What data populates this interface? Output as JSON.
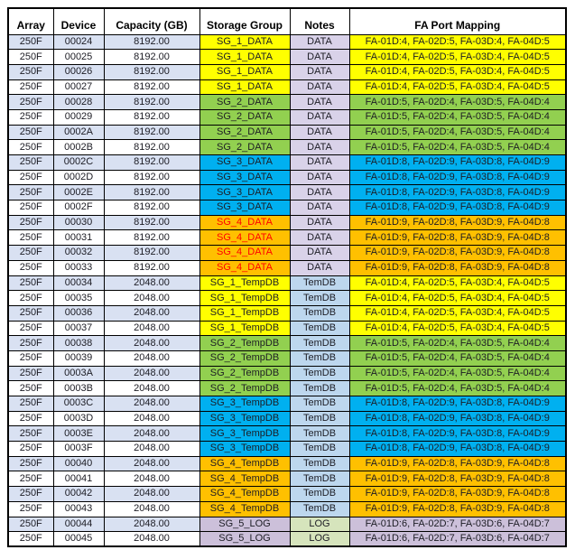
{
  "table": {
    "columns": [
      "Array",
      "Device",
      "Capacity (GB)",
      "Storage Group",
      "Notes",
      "FA Port Mapping"
    ],
    "colors": {
      "stripe": "#D9E1F2",
      "row_alt": "#FFFFFF",
      "border": "#000000",
      "header_bg": "#FFFFFF",
      "default_text": "#1C1C24",
      "sg4_data_text": "#FF0000"
    },
    "groups": {
      "SG_1_DATA": {
        "color": "#FFFF00",
        "text_color": "#1C1C24",
        "note": "DATA",
        "fa": "FA-01D:4, FA-02D:5, FA-03D:4, FA-04D:5"
      },
      "SG_2_DATA": {
        "color": "#92D050",
        "text_color": "#1C1C24",
        "note": "DATA",
        "fa": "FA-01D:5, FA-02D:4, FA-03D:5, FA-04D:4"
      },
      "SG_3_DATA": {
        "color": "#00B0F0",
        "text_color": "#1C1C24",
        "note": "DATA",
        "fa": "FA-01D:8, FA-02D:9, FA-03D:8, FA-04D:9"
      },
      "SG_4_DATA": {
        "color": "#FFC000",
        "text_color": "#FF0000",
        "note": "DATA",
        "fa": "FA-01D:9, FA-02D:8, FA-03D:9, FA-04D:8"
      },
      "SG_1_TempDB": {
        "color": "#FFFF00",
        "text_color": "#1C1C24",
        "note": "TemDB",
        "fa": "FA-01D:4, FA-02D:5, FA-03D:4, FA-04D:5"
      },
      "SG_2_TempDB": {
        "color": "#92D050",
        "text_color": "#1C1C24",
        "note": "TemDB",
        "fa": "FA-01D:5, FA-02D:4, FA-03D:5, FA-04D:4"
      },
      "SG_3_TempDB": {
        "color": "#00B0F0",
        "text_color": "#1C1C24",
        "note": "TemDB",
        "fa": "FA-01D:8, FA-02D:9, FA-03D:8, FA-04D:9"
      },
      "SG_4_TempDB": {
        "color": "#FFC000",
        "text_color": "#1C1C24",
        "note": "TemDB",
        "fa": "FA-01D:9, FA-02D:8, FA-03D:9, FA-04D:8"
      },
      "SG_5_LOG": {
        "color": "#CCC0DA",
        "text_color": "#1C1C24",
        "note": "LOG",
        "fa": "FA-01D:6, FA-02D:7, FA-03D:6, FA-04D:7"
      }
    },
    "notes": {
      "DATA": {
        "bg": "#D9D2E9"
      },
      "TemDB": {
        "bg": "#BDD7EE"
      },
      "LOG": {
        "bg": "#D6E4BC"
      }
    },
    "rows": [
      {
        "array": "250F",
        "device": "00024",
        "capacity": "8192.00",
        "group": "SG_1_DATA"
      },
      {
        "array": "250F",
        "device": "00025",
        "capacity": "8192.00",
        "group": "SG_1_DATA"
      },
      {
        "array": "250F",
        "device": "00026",
        "capacity": "8192.00",
        "group": "SG_1_DATA"
      },
      {
        "array": "250F",
        "device": "00027",
        "capacity": "8192.00",
        "group": "SG_1_DATA"
      },
      {
        "array": "250F",
        "device": "00028",
        "capacity": "8192.00",
        "group": "SG_2_DATA"
      },
      {
        "array": "250F",
        "device": "00029",
        "capacity": "8192.00",
        "group": "SG_2_DATA"
      },
      {
        "array": "250F",
        "device": "0002A",
        "capacity": "8192.00",
        "group": "SG_2_DATA"
      },
      {
        "array": "250F",
        "device": "0002B",
        "capacity": "8192.00",
        "group": "SG_2_DATA"
      },
      {
        "array": "250F",
        "device": "0002C",
        "capacity": "8192.00",
        "group": "SG_3_DATA"
      },
      {
        "array": "250F",
        "device": "0002D",
        "capacity": "8192.00",
        "group": "SG_3_DATA"
      },
      {
        "array": "250F",
        "device": "0002E",
        "capacity": "8192.00",
        "group": "SG_3_DATA"
      },
      {
        "array": "250F",
        "device": "0002F",
        "capacity": "8192.00",
        "group": "SG_3_DATA"
      },
      {
        "array": "250F",
        "device": "00030",
        "capacity": "8192.00",
        "group": "SG_4_DATA"
      },
      {
        "array": "250F",
        "device": "00031",
        "capacity": "8192.00",
        "group": "SG_4_DATA"
      },
      {
        "array": "250F",
        "device": "00032",
        "capacity": "8192.00",
        "group": "SG_4_DATA"
      },
      {
        "array": "250F",
        "device": "00033",
        "capacity": "8192.00",
        "group": "SG_4_DATA"
      },
      {
        "array": "250F",
        "device": "00034",
        "capacity": "2048.00",
        "group": "SG_1_TempDB"
      },
      {
        "array": "250F",
        "device": "00035",
        "capacity": "2048.00",
        "group": "SG_1_TempDB"
      },
      {
        "array": "250F",
        "device": "00036",
        "capacity": "2048.00",
        "group": "SG_1_TempDB"
      },
      {
        "array": "250F",
        "device": "00037",
        "capacity": "2048.00",
        "group": "SG_1_TempDB"
      },
      {
        "array": "250F",
        "device": "00038",
        "capacity": "2048.00",
        "group": "SG_2_TempDB"
      },
      {
        "array": "250F",
        "device": "00039",
        "capacity": "2048.00",
        "group": "SG_2_TempDB"
      },
      {
        "array": "250F",
        "device": "0003A",
        "capacity": "2048.00",
        "group": "SG_2_TempDB"
      },
      {
        "array": "250F",
        "device": "0003B",
        "capacity": "2048.00",
        "group": "SG_2_TempDB"
      },
      {
        "array": "250F",
        "device": "0003C",
        "capacity": "2048.00",
        "group": "SG_3_TempDB"
      },
      {
        "array": "250F",
        "device": "0003D",
        "capacity": "2048.00",
        "group": "SG_3_TempDB"
      },
      {
        "array": "250F",
        "device": "0003E",
        "capacity": "2048.00",
        "group": "SG_3_TempDB"
      },
      {
        "array": "250F",
        "device": "0003F",
        "capacity": "2048.00",
        "group": "SG_3_TempDB"
      },
      {
        "array": "250F",
        "device": "00040",
        "capacity": "2048.00",
        "group": "SG_4_TempDB"
      },
      {
        "array": "250F",
        "device": "00041",
        "capacity": "2048.00",
        "group": "SG_4_TempDB"
      },
      {
        "array": "250F",
        "device": "00042",
        "capacity": "2048.00",
        "group": "SG_4_TempDB"
      },
      {
        "array": "250F",
        "device": "00043",
        "capacity": "2048.00",
        "group": "SG_4_TempDB"
      },
      {
        "array": "250F",
        "device": "00044",
        "capacity": "2048.00",
        "group": "SG_5_LOG"
      },
      {
        "array": "250F",
        "device": "00045",
        "capacity": "2048.00",
        "group": "SG_5_LOG"
      }
    ]
  }
}
